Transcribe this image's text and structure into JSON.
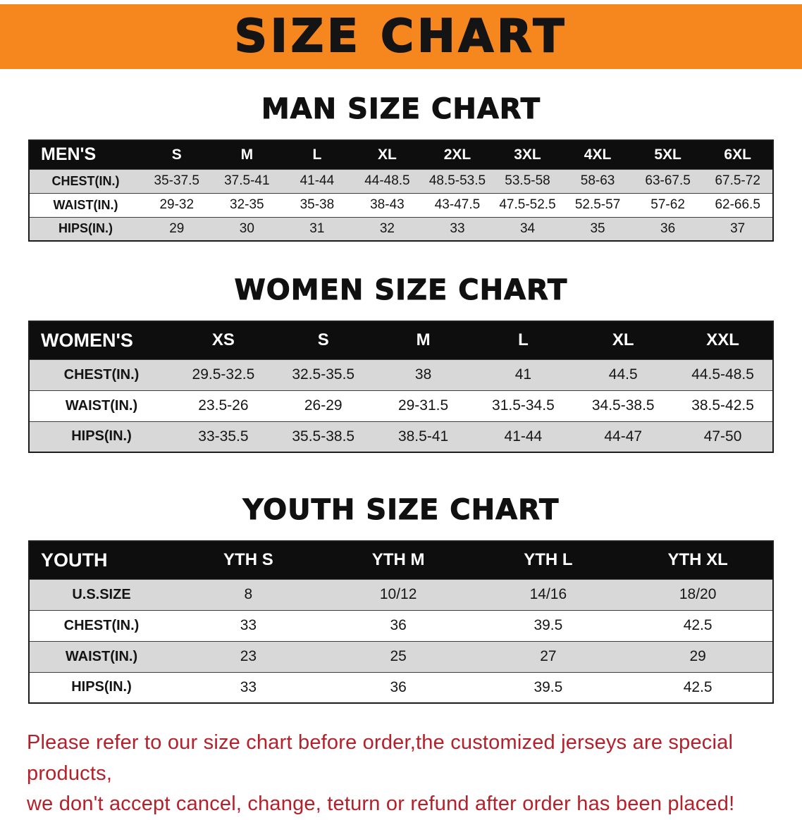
{
  "banner": {
    "title": "SIZE CHART"
  },
  "colors": {
    "banner_bg": "#f6861e",
    "banner_text": "#141414",
    "header_row_bg": "#0e0e0e",
    "header_row_text": "#ffffff",
    "row_shade": "#d8d8d8",
    "footer_text": "#b5202a"
  },
  "men": {
    "title": "MAN SIZE CHART",
    "table": {
      "header": [
        "MEN'S",
        "S",
        "M",
        "L",
        "XL",
        "2XL",
        "3XL",
        "4XL",
        "5XL",
        "6XL"
      ],
      "rows": [
        {
          "label": "CHEST(IN.)",
          "shaded": true,
          "values": [
            "35-37.5",
            "37.5-41",
            "41-44",
            "44-48.5",
            "48.5-53.5",
            "53.5-58",
            "58-63",
            "63-67.5",
            "67.5-72"
          ]
        },
        {
          "label": "WAIST(IN.)",
          "shaded": false,
          "values": [
            "29-32",
            "32-35",
            "35-38",
            "38-43",
            "43-47.5",
            "47.5-52.5",
            "52.5-57",
            "57-62",
            "62-66.5"
          ]
        },
        {
          "label": "HIPS(IN.)",
          "shaded": true,
          "values": [
            "29",
            "30",
            "31",
            "32",
            "33",
            "34",
            "35",
            "36",
            "37"
          ]
        }
      ]
    }
  },
  "women": {
    "title": "WOMEN SIZE CHART",
    "table": {
      "header": [
        "WOMEN'S",
        "XS",
        "S",
        "M",
        "L",
        "XL",
        "XXL"
      ],
      "rows": [
        {
          "label": "CHEST(IN.)",
          "shaded": true,
          "values": [
            "29.5-32.5",
            "32.5-35.5",
            "38",
            "41",
            "44.5",
            "44.5-48.5"
          ]
        },
        {
          "label": "WAIST(IN.)",
          "shaded": false,
          "values": [
            "23.5-26",
            "26-29",
            "29-31.5",
            "31.5-34.5",
            "34.5-38.5",
            "38.5-42.5"
          ]
        },
        {
          "label": "HIPS(IN.)",
          "shaded": true,
          "values": [
            "33-35.5",
            "35.5-38.5",
            "38.5-41",
            "41-44",
            "44-47",
            "47-50"
          ]
        }
      ]
    }
  },
  "youth": {
    "title": "YOUTH SIZE CHART",
    "table": {
      "header": [
        "YOUTH",
        "YTH S",
        "YTH M",
        "YTH L",
        "YTH XL"
      ],
      "rows": [
        {
          "label": "U.S.SIZE",
          "shaded": true,
          "values": [
            "8",
            "10/12",
            "14/16",
            "18/20"
          ]
        },
        {
          "label": "CHEST(IN.)",
          "shaded": false,
          "values": [
            "33",
            "36",
            "39.5",
            "42.5"
          ]
        },
        {
          "label": "WAIST(IN.)",
          "shaded": true,
          "values": [
            "23",
            "25",
            "27",
            "29"
          ]
        },
        {
          "label": "HIPS(IN.)",
          "shaded": false,
          "values": [
            "33",
            "36",
            "39.5",
            "42.5"
          ]
        }
      ]
    }
  },
  "footer": {
    "line1": "Please refer to our size chart before order,the customized jerseys are special products,",
    "line2": "we don't accept cancel, change, teturn or refund after order has been placed!"
  }
}
